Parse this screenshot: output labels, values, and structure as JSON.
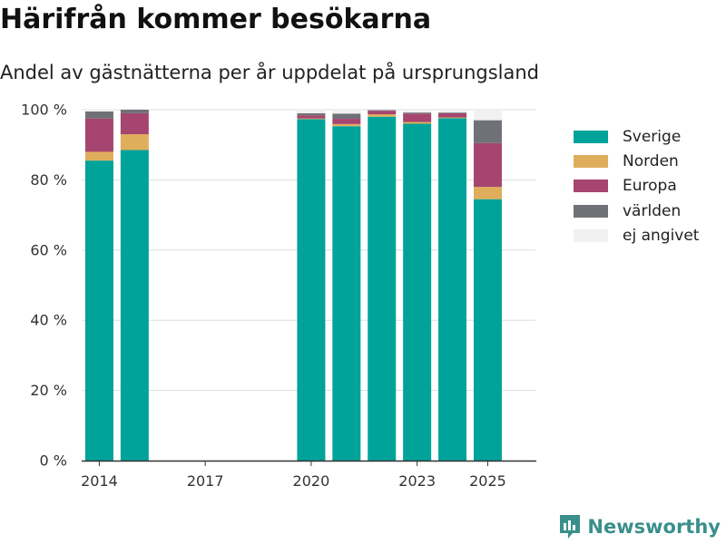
{
  "title": "Härifrån kommer besökarna",
  "subtitle": "Andel av gästnätterna per år uppdelat på ursprungsland",
  "brand": {
    "label": "Newsworthy",
    "icon": "newsworthy-logo-icon"
  },
  "chart_data": {
    "type": "bar",
    "stacked": true,
    "title": "Härifrån kommer besökarna",
    "subtitle": "Andel av gästnätterna per år uppdelat på ursprungsland",
    "xlabel": "",
    "ylabel": "",
    "categories": [
      2014,
      2015,
      2016,
      2017,
      2018,
      2019,
      2020,
      2021,
      2022,
      2023,
      2024,
      2025
    ],
    "x_ticks": [
      "2014",
      "2017",
      "2020",
      "2023",
      "2025"
    ],
    "y_ticks": [
      "0 %",
      "20 %",
      "40 %",
      "60 %",
      "80 %",
      "100 %"
    ],
    "ylim": [
      0,
      100
    ],
    "grid": true,
    "legend_position": "right",
    "series": [
      {
        "name": "Sverige",
        "color": "#00a39a",
        "values": [
          85.5,
          88.5,
          null,
          null,
          null,
          null,
          97.3,
          95.3,
          98.0,
          96.0,
          97.6,
          74.5
        ]
      },
      {
        "name": "Norden",
        "color": "#dfae5c",
        "values": [
          2.5,
          4.5,
          null,
          null,
          null,
          null,
          0.2,
          0.6,
          0.7,
          0.5,
          0.2,
          3.5
        ]
      },
      {
        "name": "Europa",
        "color": "#a6456f",
        "values": [
          9.5,
          6.0,
          null,
          null,
          null,
          null,
          0.9,
          1.5,
          1.0,
          2.4,
          1.2,
          12.5
        ]
      },
      {
        "name": "världen",
        "color": "#707176",
        "values": [
          2.0,
          1.0,
          null,
          null,
          null,
          null,
          0.6,
          1.5,
          0.2,
          0.3,
          0.2,
          6.5
        ]
      },
      {
        "name": "ej angivet",
        "color": "#f1f1f1",
        "values": [
          0.5,
          0,
          null,
          null,
          null,
          null,
          1.0,
          1.1,
          0.1,
          0.8,
          0.8,
          3.0
        ]
      }
    ]
  }
}
